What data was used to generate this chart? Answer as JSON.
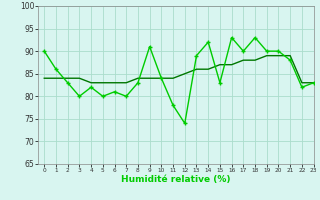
{
  "x": [
    0,
    1,
    2,
    3,
    4,
    5,
    6,
    7,
    8,
    9,
    10,
    11,
    12,
    13,
    14,
    15,
    16,
    17,
    18,
    19,
    20,
    21,
    22,
    23
  ],
  "y_main": [
    90,
    86,
    83,
    80,
    82,
    80,
    81,
    80,
    83,
    91,
    84,
    78,
    74,
    89,
    92,
    83,
    93,
    90,
    93,
    90,
    90,
    88,
    82,
    83
  ],
  "y_trend": [
    84,
    84,
    84,
    84,
    83,
    83,
    83,
    83,
    84,
    84,
    84,
    84,
    85,
    86,
    86,
    87,
    87,
    88,
    88,
    89,
    89,
    89,
    83,
    83
  ],
  "line_color": "#00CC00",
  "trend_color": "#007700",
  "bg_color": "#D8F5F0",
  "grid_color": "#AADDCC",
  "xlabel": "Humidité relative (%)",
  "ylim": [
    65,
    100
  ],
  "xlim": [
    -0.5,
    23
  ],
  "yticks": [
    65,
    70,
    75,
    80,
    85,
    90,
    95,
    100
  ],
  "xticks": [
    0,
    1,
    2,
    3,
    4,
    5,
    6,
    7,
    8,
    9,
    10,
    11,
    12,
    13,
    14,
    15,
    16,
    17,
    18,
    19,
    20,
    21,
    22,
    23
  ]
}
